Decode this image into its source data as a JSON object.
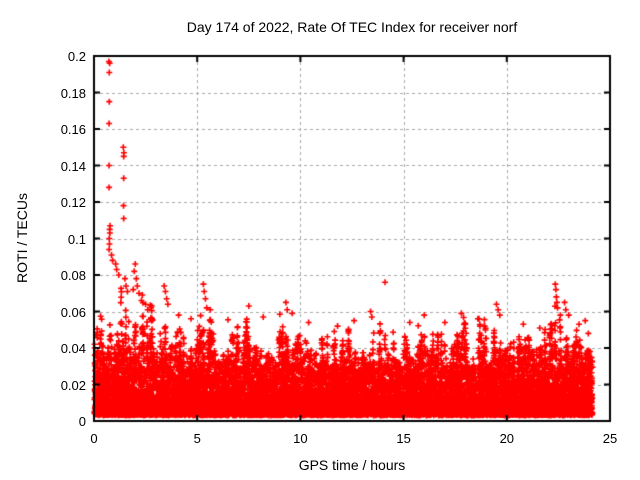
{
  "chart_data": {
    "type": "scatter",
    "title": "Day 174 of 2022, Rate Of TEC Index for receiver norf",
    "xlabel": "GPS time / hours",
    "ylabel": "ROTI / TECUs",
    "xlim": [
      0,
      25
    ],
    "ylim": [
      0,
      0.2
    ],
    "xticks": {
      "values": [
        0,
        5,
        10,
        15,
        20,
        25
      ],
      "labels": [
        "0",
        "5",
        "10",
        "15",
        "20",
        "25"
      ]
    },
    "yticks": {
      "values": [
        0,
        0.02,
        0.04,
        0.06,
        0.08,
        0.1,
        0.12,
        0.14,
        0.16,
        0.18,
        0.2
      ],
      "labels": [
        "0",
        "0.02",
        "0.04",
        "0.06",
        "0.08",
        "0.1",
        "0.12",
        "0.14",
        "0.16",
        "0.18",
        "0.2"
      ]
    },
    "grid": {
      "on": true,
      "color": "#a9a9a9",
      "style": "dashed"
    },
    "marker": {
      "shape": "plus",
      "color": "#ff0000",
      "size": 7
    },
    "border_color": "#000000",
    "background": "#ffffff",
    "data_hour_range": [
      0.02,
      24.15
    ],
    "dense_band": {
      "comment": "solid mass of ROTI samples; envelope = typical per-hour spike maximum (TECUs)",
      "y_floor": 0.003,
      "bulk_top": 0.027,
      "point_count": 15000,
      "noise_bin_hours": 0.08,
      "seed": 174,
      "envelope_hours": [
        0,
        1,
        2,
        3,
        4,
        5,
        6,
        7,
        8,
        9,
        10,
        11,
        12,
        13,
        14,
        15,
        16,
        17,
        18,
        19,
        20,
        21,
        22,
        23,
        24
      ],
      "envelope_max": [
        0.06,
        0.1,
        0.088,
        0.075,
        0.062,
        0.072,
        0.055,
        0.062,
        0.055,
        0.064,
        0.052,
        0.05,
        0.055,
        0.06,
        0.062,
        0.052,
        0.058,
        0.055,
        0.058,
        0.062,
        0.052,
        0.05,
        0.072,
        0.062,
        0.045
      ]
    },
    "outliers": [
      [
        0.72,
        0.197
      ],
      [
        0.76,
        0.196
      ],
      [
        0.74,
        0.191
      ],
      [
        0.74,
        0.175
      ],
      [
        0.73,
        0.163
      ],
      [
        0.73,
        0.14
      ],
      [
        0.73,
        0.128
      ],
      [
        0.78,
        0.107
      ],
      [
        0.76,
        0.105
      ],
      [
        0.77,
        0.103
      ],
      [
        0.74,
        0.1
      ],
      [
        0.75,
        0.097
      ],
      [
        0.73,
        0.094
      ],
      [
        0.85,
        0.091
      ],
      [
        0.9,
        0.088
      ],
      [
        1.42,
        0.15
      ],
      [
        1.45,
        0.147
      ],
      [
        1.44,
        0.145
      ],
      [
        1.44,
        0.133
      ],
      [
        1.43,
        0.118
      ],
      [
        1.44,
        0.111
      ],
      [
        1.05,
        0.086
      ],
      [
        1.1,
        0.083
      ],
      [
        1.2,
        0.08
      ],
      [
        1.5,
        0.078
      ],
      [
        1.55,
        0.074
      ],
      [
        1.62,
        0.071
      ],
      [
        1.9,
        0.072
      ],
      [
        1.95,
        0.082
      ],
      [
        2.0,
        0.086
      ],
      [
        2.05,
        0.078
      ],
      [
        2.1,
        0.074
      ],
      [
        2.18,
        0.07
      ],
      [
        2.3,
        0.066
      ],
      [
        2.5,
        0.064
      ],
      [
        2.6,
        0.061
      ],
      [
        3.4,
        0.074
      ],
      [
        3.46,
        0.071
      ],
      [
        3.52,
        0.067
      ],
      [
        3.58,
        0.064
      ],
      [
        4.1,
        0.058
      ],
      [
        4.7,
        0.056
      ],
      [
        5.3,
        0.075
      ],
      [
        5.34,
        0.071
      ],
      [
        5.4,
        0.067
      ],
      [
        5.46,
        0.062
      ],
      [
        7.5,
        0.063
      ],
      [
        8.2,
        0.057
      ],
      [
        9.3,
        0.065
      ],
      [
        9.36,
        0.061
      ],
      [
        9.6,
        0.059
      ],
      [
        10.4,
        0.054
      ],
      [
        11.8,
        0.052
      ],
      [
        12.6,
        0.055
      ],
      [
        13.4,
        0.06
      ],
      [
        13.46,
        0.057
      ],
      [
        14.1,
        0.076
      ],
      [
        15.3,
        0.054
      ],
      [
        16.0,
        0.058
      ],
      [
        17.0,
        0.054
      ],
      [
        17.8,
        0.059
      ],
      [
        18.6,
        0.056
      ],
      [
        19.5,
        0.064
      ],
      [
        19.58,
        0.061
      ],
      [
        19.66,
        0.058
      ],
      [
        20.8,
        0.053
      ],
      [
        21.6,
        0.051
      ],
      [
        22.35,
        0.075
      ],
      [
        22.38,
        0.072
      ],
      [
        22.4,
        0.068
      ],
      [
        22.43,
        0.065
      ],
      [
        22.46,
        0.062
      ],
      [
        22.8,
        0.065
      ],
      [
        22.86,
        0.061
      ],
      [
        23.0,
        0.058
      ],
      [
        23.5,
        0.053
      ],
      [
        23.8,
        0.055
      ],
      [
        23.95,
        0.048
      ]
    ]
  }
}
